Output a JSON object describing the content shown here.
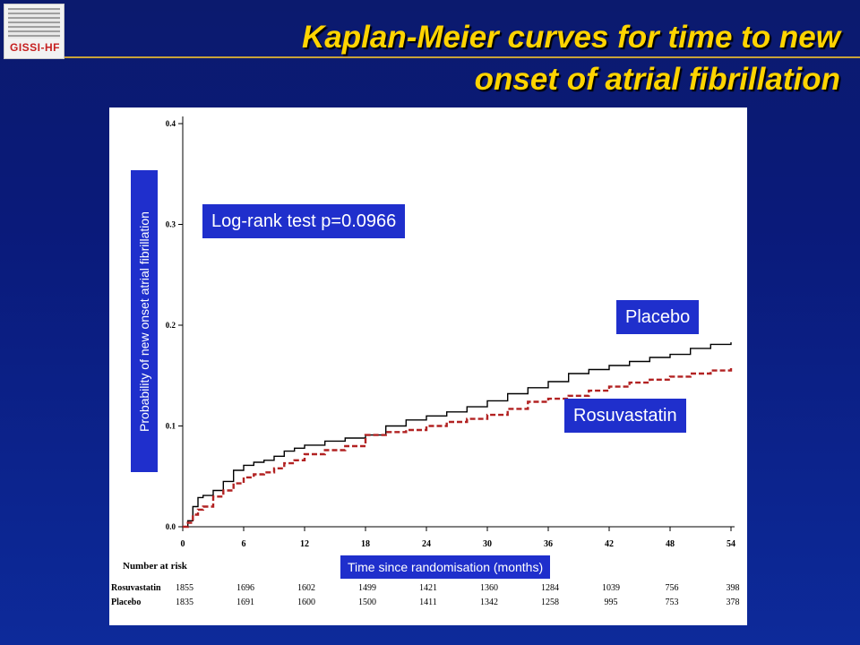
{
  "header": {
    "logo_text": "GISSI-HF",
    "title_line1": "Kaplan-Meier curves for time to new",
    "title_line2": "onset of atrial fibrillation"
  },
  "annotations": {
    "logrank": "Log-rank test p=0.0966",
    "placebo_label": "Placebo",
    "rosuvastatin_label": "Rosuvastatin"
  },
  "colors": {
    "background": "#0b1a6e",
    "title": "#ffd400",
    "label_box": "#1f2fcc",
    "placebo_line": "#000000",
    "rosuvastatin_line": "#b22222"
  },
  "chart_data": {
    "type": "line",
    "title": "Kaplan-Meier curves for time to new onset of atrial fibrillation",
    "xlabel": "Time since randomisation (months)",
    "ylabel": "Probability of new onset atrial fibrillation",
    "xlim": [
      0,
      54
    ],
    "ylim": [
      0,
      0.4
    ],
    "xticks": [
      0,
      6,
      12,
      18,
      24,
      30,
      36,
      42,
      48,
      54
    ],
    "yticks": [
      "0.0",
      "0.1",
      "0.2",
      "0.3",
      "0.4"
    ],
    "grid": false,
    "series": [
      {
        "name": "Placebo",
        "style": "solid",
        "x": [
          0,
          0.5,
          1,
          1.5,
          2,
          3,
          4,
          5,
          6,
          7,
          8,
          9,
          10,
          11,
          12,
          14,
          16,
          18,
          20,
          22,
          24,
          26,
          28,
          30,
          32,
          34,
          36,
          38,
          40,
          42,
          44,
          46,
          48,
          50,
          52,
          54
        ],
        "values": [
          0.0,
          0.006,
          0.02,
          0.029,
          0.031,
          0.036,
          0.045,
          0.056,
          0.061,
          0.064,
          0.066,
          0.07,
          0.075,
          0.078,
          0.081,
          0.085,
          0.088,
          0.091,
          0.1,
          0.106,
          0.11,
          0.114,
          0.119,
          0.125,
          0.132,
          0.138,
          0.144,
          0.152,
          0.156,
          0.16,
          0.164,
          0.168,
          0.171,
          0.177,
          0.181,
          0.183
        ]
      },
      {
        "name": "Rosuvastatin",
        "style": "dashed",
        "x": [
          0,
          0.5,
          1,
          1.5,
          2,
          3,
          4,
          5,
          6,
          7,
          8,
          9,
          10,
          11,
          12,
          14,
          16,
          18,
          20,
          22,
          24,
          26,
          28,
          30,
          32,
          34,
          36,
          38,
          40,
          42,
          44,
          46,
          48,
          50,
          52,
          54
        ],
        "values": [
          0.0,
          0.004,
          0.012,
          0.017,
          0.02,
          0.03,
          0.036,
          0.043,
          0.049,
          0.052,
          0.054,
          0.058,
          0.063,
          0.066,
          0.072,
          0.076,
          0.08,
          0.091,
          0.094,
          0.096,
          0.1,
          0.104,
          0.107,
          0.111,
          0.117,
          0.124,
          0.127,
          0.13,
          0.135,
          0.139,
          0.143,
          0.146,
          0.149,
          0.152,
          0.155,
          0.159
        ]
      }
    ]
  },
  "risk_table": {
    "heading": "Number at risk",
    "rows": [
      {
        "label": "Rosuvastatin",
        "values": [
          "1855",
          "1696",
          "1602",
          "1499",
          "1421",
          "1360",
          "1284",
          "1039",
          "756",
          "398"
        ]
      },
      {
        "label": "Placebo",
        "values": [
          "1835",
          "1691",
          "1600",
          "1500",
          "1411",
          "1342",
          "1258",
          "995",
          "753",
          "378"
        ]
      }
    ]
  }
}
